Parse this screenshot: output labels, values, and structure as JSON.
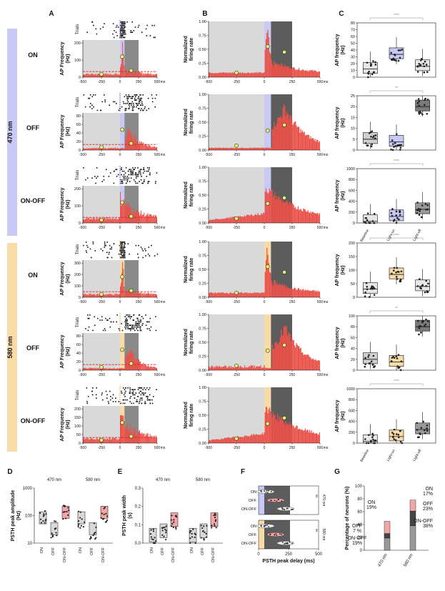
{
  "panels": {
    "A": "A",
    "B": "B",
    "C": "C",
    "D": "D",
    "E": "E",
    "F": "F",
    "G": "G"
  },
  "groups": {
    "blue": "470 nm",
    "orange": "580 nm"
  },
  "row_labels": [
    "ON",
    "OFF",
    "ON-OFF",
    "ON",
    "OFF",
    "ON-OFF"
  ],
  "labels": {
    "trials": "Trials",
    "ap_freq_a": "AP Frequency",
    "hz": "(Hz)",
    "norm1": "Normalized",
    "norm2": "firing rate",
    "ap_freq_c": "AP frequency",
    "ms": "ms",
    "psth_amp": "PSTH peak amplitude",
    "psth_width": "PSTH peak width",
    "psth_delay": "PSTH peak delay (ms)",
    "pct_neurons": "Percentage of neurons (%)",
    "s_unit": "(s)",
    "ns": "ns",
    "stars4": "****",
    "stars3": "***",
    "stars2": "**",
    "stars1": "*"
  },
  "colors": {
    "blue": "#c9c9f5",
    "orange": "#f8dca8",
    "red": "#e8524a",
    "pink": "#f2a6a6",
    "dark": "#555555",
    "gray": "#bdbdbd",
    "yellow": "#e8f56a"
  },
  "time_ticks": [
    "-500",
    "-250",
    "0",
    "250",
    "500"
  ],
  "rows": [
    {
      "a_yticks": [
        "0",
        "100",
        "200"
      ],
      "c_yticks": [
        "0",
        "10",
        "20",
        "30",
        "40",
        "50",
        "60",
        "70",
        "80"
      ]
    },
    {
      "a_yticks": [
        "0",
        "20",
        "40",
        "60",
        "80"
      ],
      "c_yticks": [
        "0",
        "5",
        "10",
        "15",
        "20",
        "25"
      ]
    },
    {
      "a_yticks": [
        "0",
        "100",
        "200"
      ],
      "c_yticks": [
        "0",
        "200",
        "400",
        "600",
        "800",
        "1000"
      ]
    },
    {
      "a_yticks": [
        "0",
        "100",
        "200",
        "300"
      ],
      "c_yticks": [
        "0",
        "50",
        "100",
        "150",
        "200"
      ]
    },
    {
      "a_yticks": [
        "0",
        "20",
        "40",
        "60",
        "80"
      ],
      "c_yticks": [
        "0",
        "20",
        "40",
        "60",
        "80",
        "100"
      ]
    },
    {
      "a_yticks": [
        "0",
        "50",
        "100",
        "150",
        "200"
      ],
      "c_yticks": [
        "0",
        "200",
        "400",
        "600",
        "800",
        "1000"
      ]
    }
  ],
  "b_yticks": [
    "0.00",
    "0.25",
    "0.50",
    "0.75",
    "1.00"
  ],
  "c_categories": [
    "Baseline",
    "Light-on",
    "Light-off"
  ],
  "d": {
    "yticks": [
      "10",
      "100",
      "1000"
    ],
    "cats": [
      "ON",
      "OFF",
      "ON-OFF"
    ],
    "groups": [
      "470 nm",
      "580 nm"
    ]
  },
  "e": {
    "yticks": [
      "0.0",
      "0.1",
      "0.2",
      "0.3"
    ],
    "cats": [
      "ON",
      "OFF",
      "ON-OFF"
    ],
    "groups": [
      "470 nm",
      "580 nm"
    ]
  },
  "f": {
    "xticks": [
      "0",
      "250",
      "500"
    ],
    "cats": [
      "ON",
      "OFF",
      "ON-OFF"
    ],
    "groups": [
      "470 nm",
      "580 nm"
    ]
  },
  "g": {
    "yticks": [
      "0",
      "20",
      "40",
      "60",
      "80",
      "100"
    ],
    "groups": [
      "470 nm",
      "580 nm"
    ],
    "ann470": [
      {
        "k": "ON",
        "v": "19%"
      },
      {
        "k": "OFF",
        "v": "7 %"
      },
      {
        "k": "ON-OFF",
        "v": "19%"
      }
    ],
    "ann580": [
      {
        "k": "ON",
        "v": "17%"
      },
      {
        "k": "OFF",
        "v": "23%"
      },
      {
        "k": "ON-OFF",
        "v": "38%"
      }
    ]
  },
  "chart_data": [
    {
      "type": "bar",
      "title": "G",
      "ylabel": "Percentage of neurons (%)",
      "ylim": [
        0,
        100
      ],
      "categories": [
        "470 nm",
        "580 nm"
      ],
      "series": [
        {
          "name": "ON-OFF",
          "values": [
            19,
            38
          ]
        },
        {
          "name": "OFF",
          "values": [
            7,
            23
          ]
        },
        {
          "name": "ON",
          "values": [
            19,
            17
          ]
        }
      ]
    },
    {
      "type": "bar",
      "title": "C (470 nm ON)",
      "ylabel": "AP frequency (Hz)",
      "ylim": [
        0,
        80
      ],
      "categories": [
        "Baseline",
        "Light-on",
        "Light-off"
      ],
      "values": [
        12,
        32,
        15
      ]
    }
  ]
}
